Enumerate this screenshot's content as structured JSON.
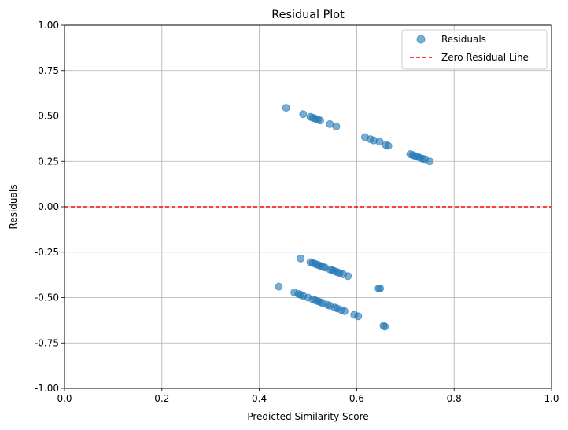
{
  "chart_data": {
    "type": "scatter",
    "title": "Residual Plot",
    "xlabel": "Predicted Similarity Score",
    "ylabel": "Residuals",
    "xlim": [
      0.0,
      1.0
    ],
    "ylim": [
      -1.0,
      1.0
    ],
    "xticks": [
      "0.0",
      "0.2",
      "0.4",
      "0.6",
      "0.8",
      "1.0"
    ],
    "yticks": [
      "1.00",
      "0.75",
      "0.50",
      "0.25",
      "0.00",
      "-0.25",
      "-0.50",
      "-0.75",
      "-1.00"
    ],
    "grid": true,
    "legend_position": "top-right",
    "series": [
      {
        "name": "Residuals",
        "kind": "scatter",
        "color": "#1f77b4",
        "alpha": 0.6,
        "points": [
          [
            0.455,
            0.545
          ],
          [
            0.49,
            0.51
          ],
          [
            0.505,
            0.495
          ],
          [
            0.51,
            0.49
          ],
          [
            0.515,
            0.485
          ],
          [
            0.52,
            0.48
          ],
          [
            0.525,
            0.475
          ],
          [
            0.545,
            0.455
          ],
          [
            0.558,
            0.442
          ],
          [
            0.617,
            0.383
          ],
          [
            0.628,
            0.372
          ],
          [
            0.635,
            0.365
          ],
          [
            0.647,
            0.358
          ],
          [
            0.66,
            0.34
          ],
          [
            0.665,
            0.335
          ],
          [
            0.71,
            0.29
          ],
          [
            0.715,
            0.285
          ],
          [
            0.72,
            0.28
          ],
          [
            0.725,
            0.275
          ],
          [
            0.73,
            0.27
          ],
          [
            0.735,
            0.265
          ],
          [
            0.74,
            0.262
          ],
          [
            0.75,
            0.25
          ],
          [
            0.485,
            -0.285
          ],
          [
            0.505,
            -0.305
          ],
          [
            0.51,
            -0.31
          ],
          [
            0.515,
            -0.315
          ],
          [
            0.52,
            -0.32
          ],
          [
            0.525,
            -0.325
          ],
          [
            0.53,
            -0.33
          ],
          [
            0.535,
            -0.335
          ],
          [
            0.545,
            -0.345
          ],
          [
            0.55,
            -0.35
          ],
          [
            0.555,
            -0.355
          ],
          [
            0.56,
            -0.36
          ],
          [
            0.565,
            -0.365
          ],
          [
            0.572,
            -0.372
          ],
          [
            0.582,
            -0.382
          ],
          [
            0.44,
            -0.44
          ],
          [
            0.472,
            -0.472
          ],
          [
            0.48,
            -0.48
          ],
          [
            0.485,
            -0.485
          ],
          [
            0.49,
            -0.49
          ],
          [
            0.5,
            -0.5
          ],
          [
            0.51,
            -0.51
          ],
          [
            0.515,
            -0.515
          ],
          [
            0.52,
            -0.52
          ],
          [
            0.525,
            -0.525
          ],
          [
            0.53,
            -0.53
          ],
          [
            0.54,
            -0.54
          ],
          [
            0.545,
            -0.545
          ],
          [
            0.555,
            -0.555
          ],
          [
            0.56,
            -0.56
          ],
          [
            0.568,
            -0.568
          ],
          [
            0.575,
            -0.575
          ],
          [
            0.595,
            -0.595
          ],
          [
            0.603,
            -0.603
          ],
          [
            0.645,
            -0.45
          ],
          [
            0.648,
            -0.45
          ],
          [
            0.655,
            -0.655
          ],
          [
            0.658,
            -0.66
          ]
        ]
      },
      {
        "name": "Zero Residual Line",
        "kind": "hline",
        "y": 0.0,
        "color": "#ff0000",
        "style": "dashed"
      }
    ]
  }
}
